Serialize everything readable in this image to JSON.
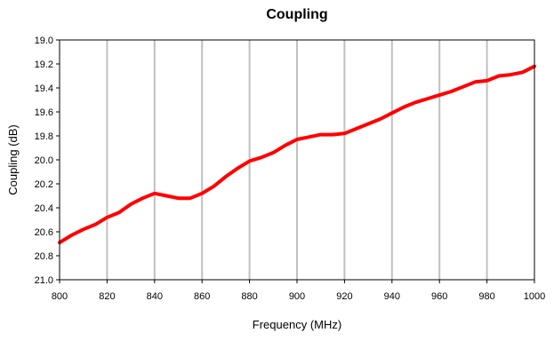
{
  "chart_data": {
    "type": "line",
    "title": "Coupling",
    "xlabel": "Frequency (MHz)",
    "ylabel": "Coupling (dB)",
    "xlim": [
      800,
      1000
    ],
    "ylim": [
      19.0,
      21.0
    ],
    "y_inverted": true,
    "grid": "vertical",
    "legend": "none",
    "x_ticks": [
      "800",
      "820",
      "840",
      "860",
      "880",
      "900",
      "920",
      "940",
      "960",
      "980",
      "1000"
    ],
    "y_ticks": [
      "19.0",
      "19.2",
      "19.4",
      "19.6",
      "19.8",
      "20.0",
      "20.2",
      "20.4",
      "20.6",
      "20.8",
      "21.0"
    ],
    "series": [
      {
        "color": "#ff0000",
        "x": [
          800,
          805,
          810,
          815,
          820,
          825,
          830,
          835,
          840,
          845,
          850,
          855,
          860,
          865,
          870,
          875,
          880,
          885,
          890,
          895,
          900,
          905,
          910,
          915,
          920,
          925,
          930,
          935,
          940,
          945,
          950,
          955,
          960,
          965,
          970,
          975,
          980,
          985,
          990,
          995,
          1000
        ],
        "y": [
          20.69,
          20.63,
          20.58,
          20.54,
          20.48,
          20.44,
          20.37,
          20.32,
          20.28,
          20.3,
          20.32,
          20.32,
          20.28,
          20.22,
          20.14,
          20.07,
          20.01,
          19.98,
          19.94,
          19.88,
          19.83,
          19.81,
          19.79,
          19.79,
          19.78,
          19.74,
          19.7,
          19.66,
          19.61,
          19.56,
          19.52,
          19.49,
          19.46,
          19.43,
          19.39,
          19.35,
          19.34,
          19.3,
          19.29,
          19.27,
          19.22
        ]
      }
    ]
  }
}
